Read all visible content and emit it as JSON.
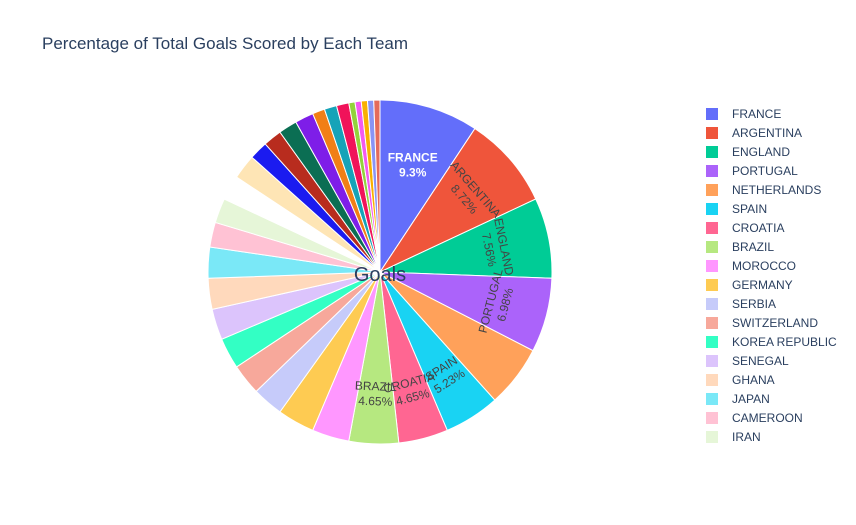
{
  "chart_data": {
    "type": "pie",
    "title": "Percentage of Total Goals Scored by Each Team",
    "center_label": "Goals",
    "direction": "clockwise",
    "start": "top",
    "legend_position": "right",
    "slices": [
      {
        "label": "FRANCE",
        "value": 16,
        "pct": "9.3%",
        "color": "#636efa",
        "legend": true,
        "text_color": "#ffffff",
        "bold": true
      },
      {
        "label": "ARGENTINA",
        "value": 15,
        "pct": "8.72%",
        "color": "#ef553b",
        "legend": true,
        "text_color": "#444444",
        "bold": false
      },
      {
        "label": "ENGLAND",
        "value": 13,
        "pct": "7.56%",
        "color": "#00cc96",
        "legend": true,
        "text_color": "#444444",
        "bold": false
      },
      {
        "label": "PORTUGAL",
        "value": 12,
        "pct": "6.98%",
        "color": "#ab63fa",
        "legend": true,
        "text_color": "#444444",
        "bold": false
      },
      {
        "label": "NETHERLANDS",
        "value": 10,
        "pct": "",
        "color": "#ffa15a",
        "legend": true
      },
      {
        "label": "SPAIN",
        "value": 9,
        "pct": "5.23%",
        "color": "#19d3f3",
        "legend": true,
        "text_color": "#444444",
        "bold": false
      },
      {
        "label": "CROATIA",
        "value": 8,
        "pct": "4.65%",
        "color": "#ff6692",
        "legend": true,
        "text_color": "#444444",
        "bold": false
      },
      {
        "label": "BRAZIL",
        "value": 8,
        "pct": "4.65%",
        "color": "#b6e880",
        "legend": true,
        "text_color": "#444444",
        "bold": false
      },
      {
        "label": "MOROCCO",
        "value": 6,
        "pct": "",
        "color": "#ff97ff",
        "legend": true
      },
      {
        "label": "GERMANY",
        "value": 6,
        "pct": "",
        "color": "#fecb52",
        "legend": true
      },
      {
        "label": "SERBIA",
        "value": 5,
        "pct": "",
        "color": "#c6cbfa",
        "legend": true
      },
      {
        "label": "SWITZERLAND",
        "value": 5,
        "pct": "",
        "color": "#f7a89b",
        "legend": true
      },
      {
        "label": "KOREA REPUBLIC",
        "value": 5,
        "pct": "",
        "color": "#33ffc4",
        "legend": true
      },
      {
        "label": "SENEGAL",
        "value": 5,
        "pct": "",
        "color": "#dcc4fc",
        "legend": true
      },
      {
        "label": "GHANA",
        "value": 5,
        "pct": "",
        "color": "#ffd9bc",
        "legend": true
      },
      {
        "label": "JAPAN",
        "value": 5,
        "pct": "",
        "color": "#7ae8f7",
        "legend": true
      },
      {
        "label": "CAMEROON",
        "value": 4,
        "pct": "",
        "color": "#ffc2d4",
        "legend": true
      },
      {
        "label": "IRAN",
        "value": 4,
        "pct": "",
        "color": "#e6f6d8",
        "legend": true
      },
      {
        "label": "",
        "value": 4,
        "pct": "",
        "color": "#ffffff",
        "legend": false
      },
      {
        "label": "",
        "value": 4,
        "pct": "",
        "color": "#fee5b5",
        "legend": false
      },
      {
        "label": "",
        "value": 3,
        "pct": "",
        "color": "#1b1bf0",
        "legend": false
      },
      {
        "label": "",
        "value": 3,
        "pct": "",
        "color": "#b82c1e",
        "legend": false
      },
      {
        "label": "",
        "value": 3,
        "pct": "",
        "color": "#0b6e53",
        "legend": false
      },
      {
        "label": "",
        "value": 3,
        "pct": "",
        "color": "#7e1ee8",
        "legend": false
      },
      {
        "label": "",
        "value": 2,
        "pct": "",
        "color": "#f17f16",
        "legend": false
      },
      {
        "label": "",
        "value": 2,
        "pct": "",
        "color": "#16a3b8",
        "legend": false
      },
      {
        "label": "",
        "value": 2,
        "pct": "",
        "color": "#f0135a",
        "legend": false
      },
      {
        "label": "",
        "value": 1,
        "pct": "",
        "color": "#93d33b",
        "legend": false
      },
      {
        "label": "",
        "value": 1,
        "pct": "",
        "color": "#f35af0",
        "legend": false
      },
      {
        "label": "",
        "value": 1,
        "pct": "",
        "color": "#f9b000",
        "legend": false
      },
      {
        "label": "",
        "value": 1,
        "pct": "",
        "color": "#8994f5",
        "legend": false
      },
      {
        "label": "",
        "value": 1,
        "pct": "",
        "color": "#e56b5a",
        "legend": false
      }
    ]
  }
}
